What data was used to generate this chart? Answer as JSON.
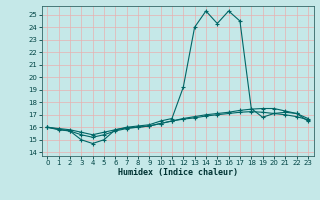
{
  "title": "",
  "xlabel": "Humidex (Indice chaleur)",
  "ylabel": "",
  "bg_color": "#c5e8e8",
  "line_color": "#006666",
  "grid_color": "#e8b0b0",
  "xlim": [
    -0.5,
    23.5
  ],
  "ylim": [
    13.7,
    25.7
  ],
  "yticks": [
    14,
    15,
    16,
    17,
    18,
    19,
    20,
    21,
    22,
    23,
    24,
    25
  ],
  "xticks": [
    0,
    1,
    2,
    3,
    4,
    5,
    6,
    7,
    8,
    9,
    10,
    11,
    12,
    13,
    14,
    15,
    16,
    17,
    18,
    19,
    20,
    21,
    22,
    23
  ],
  "line1_x": [
    0,
    1,
    2,
    3,
    4,
    5,
    6,
    7,
    8,
    9,
    10,
    11,
    12,
    13,
    14,
    15,
    16,
    17,
    18,
    19,
    20,
    21,
    22,
    23
  ],
  "line1_y": [
    16.0,
    15.8,
    15.7,
    15.0,
    14.7,
    15.0,
    15.8,
    16.0,
    16.1,
    16.2,
    16.5,
    16.7,
    19.2,
    24.0,
    25.3,
    24.3,
    25.3,
    24.5,
    17.5,
    16.8,
    17.1,
    17.2,
    17.1,
    16.5
  ],
  "line2_x": [
    0,
    1,
    2,
    3,
    4,
    5,
    6,
    7,
    8,
    9,
    10,
    11,
    12,
    13,
    14,
    15,
    16,
    17,
    18,
    19,
    20,
    21,
    22,
    23
  ],
  "line2_y": [
    16.0,
    15.85,
    15.7,
    15.4,
    15.2,
    15.4,
    15.7,
    15.9,
    16.0,
    16.1,
    16.3,
    16.5,
    16.7,
    16.85,
    17.0,
    17.1,
    17.2,
    17.35,
    17.45,
    17.5,
    17.5,
    17.3,
    17.1,
    16.7
  ],
  "line3_x": [
    0,
    1,
    2,
    3,
    4,
    5,
    6,
    7,
    8,
    9,
    10,
    11,
    12,
    13,
    14,
    15,
    16,
    17,
    18,
    19,
    20,
    21,
    22,
    23
  ],
  "line3_y": [
    16.0,
    15.9,
    15.8,
    15.6,
    15.4,
    15.6,
    15.8,
    15.95,
    16.0,
    16.1,
    16.3,
    16.5,
    16.65,
    16.75,
    16.9,
    17.0,
    17.1,
    17.2,
    17.25,
    17.2,
    17.1,
    17.0,
    16.85,
    16.6
  ]
}
